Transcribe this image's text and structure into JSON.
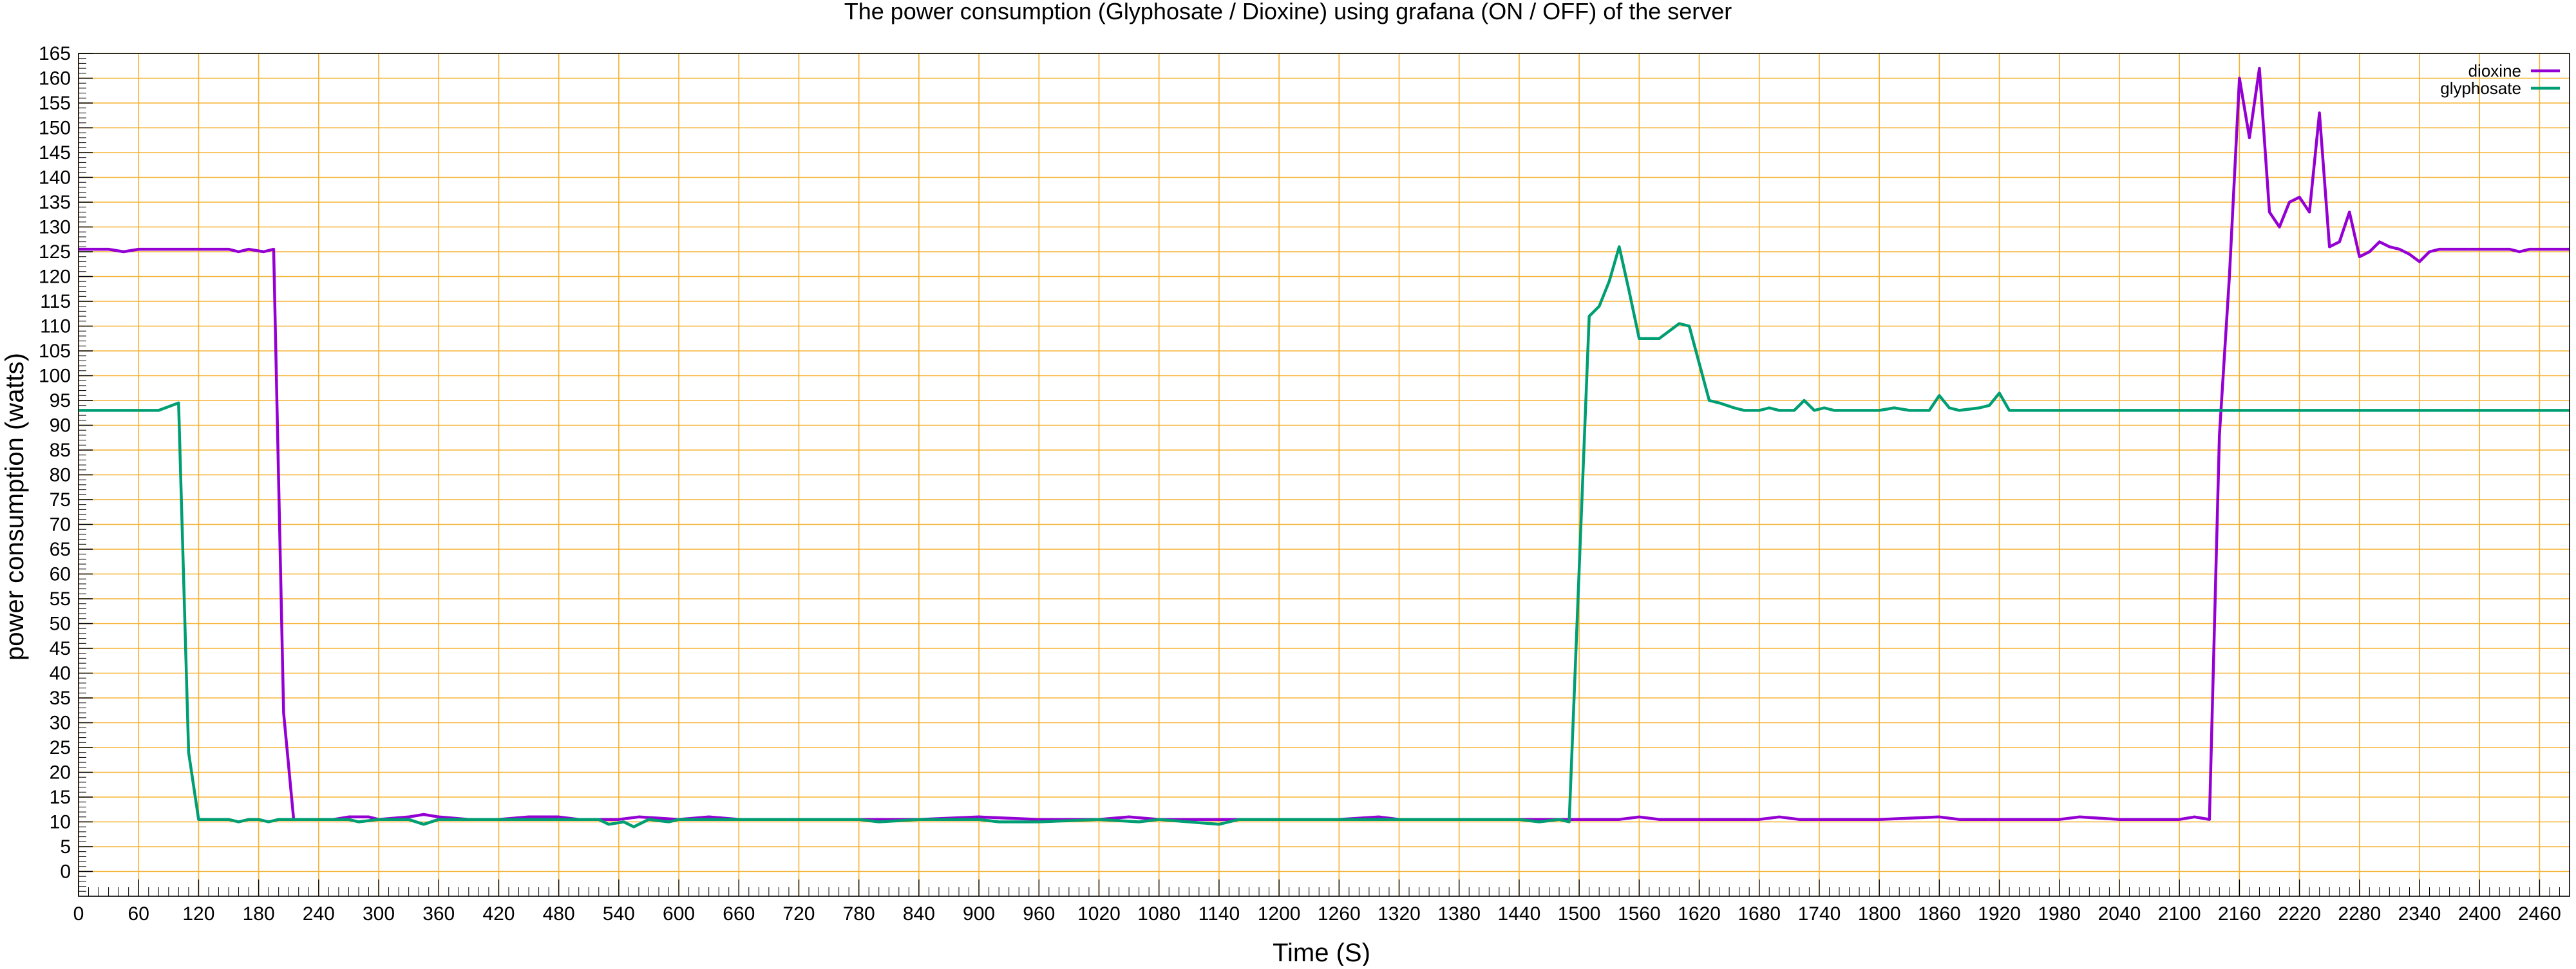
{
  "chart_data": {
    "type": "line",
    "title": "The power consumption (Glyphosate / Dioxine) using grafana (ON / OFF) of the server",
    "xlabel": "Time (S)",
    "ylabel": "power consumption (watts)",
    "xlim": [
      0,
      2490
    ],
    "ylim": [
      -5,
      165
    ],
    "x_ticks": [
      0,
      60,
      120,
      180,
      240,
      300,
      360,
      420,
      480,
      540,
      600,
      660,
      720,
      780,
      840,
      900,
      960,
      1020,
      1080,
      1140,
      1200,
      1260,
      1320,
      1380,
      1440,
      1500,
      1560,
      1620,
      1680,
      1740,
      1800,
      1860,
      1920,
      1980,
      2040,
      2100,
      2160,
      2220,
      2280,
      2340,
      2400,
      2460
    ],
    "y_ticks": [
      0,
      5,
      10,
      15,
      20,
      25,
      30,
      35,
      40,
      45,
      50,
      55,
      60,
      65,
      70,
      75,
      80,
      85,
      90,
      95,
      100,
      105,
      110,
      115,
      120,
      125,
      130,
      135,
      140,
      145,
      150,
      155,
      160,
      165
    ],
    "grid": true,
    "grid_color": "#f5b335",
    "legend_position": "top-right",
    "series": [
      {
        "name": "dioxine",
        "color": "#9400d3",
        "points": [
          [
            0,
            125.5
          ],
          [
            30,
            125.5
          ],
          [
            45,
            125
          ],
          [
            60,
            125.5
          ],
          [
            90,
            125.5
          ],
          [
            120,
            125.5
          ],
          [
            150,
            125.5
          ],
          [
            160,
            125
          ],
          [
            170,
            125.5
          ],
          [
            185,
            125
          ],
          [
            195,
            125.5
          ],
          [
            205,
            32
          ],
          [
            215,
            10.5
          ],
          [
            240,
            10.5
          ],
          [
            255,
            10.5
          ],
          [
            270,
            11
          ],
          [
            290,
            11
          ],
          [
            300,
            10.5
          ],
          [
            330,
            11
          ],
          [
            345,
            11.5
          ],
          [
            360,
            11
          ],
          [
            390,
            10.5
          ],
          [
            420,
            10.5
          ],
          [
            450,
            11
          ],
          [
            480,
            11
          ],
          [
            500,
            10.5
          ],
          [
            540,
            10.5
          ],
          [
            560,
            11
          ],
          [
            600,
            10.5
          ],
          [
            630,
            11
          ],
          [
            660,
            10.5
          ],
          [
            720,
            10.5
          ],
          [
            780,
            10.5
          ],
          [
            840,
            10.5
          ],
          [
            900,
            11
          ],
          [
            960,
            10.5
          ],
          [
            1020,
            10.5
          ],
          [
            1050,
            11
          ],
          [
            1080,
            10.5
          ],
          [
            1140,
            10.5
          ],
          [
            1200,
            10.5
          ],
          [
            1260,
            10.5
          ],
          [
            1300,
            11
          ],
          [
            1320,
            10.5
          ],
          [
            1380,
            10.5
          ],
          [
            1440,
            10.5
          ],
          [
            1480,
            10.5
          ],
          [
            1500,
            10.5
          ],
          [
            1540,
            10.5
          ],
          [
            1560,
            11
          ],
          [
            1580,
            10.5
          ],
          [
            1620,
            10.5
          ],
          [
            1680,
            10.5
          ],
          [
            1700,
            11
          ],
          [
            1720,
            10.5
          ],
          [
            1740,
            10.5
          ],
          [
            1800,
            10.5
          ],
          [
            1860,
            11
          ],
          [
            1880,
            10.5
          ],
          [
            1920,
            10.5
          ],
          [
            1980,
            10.5
          ],
          [
            2000,
            11
          ],
          [
            2040,
            10.5
          ],
          [
            2100,
            10.5
          ],
          [
            2115,
            11
          ],
          [
            2130,
            10.5
          ],
          [
            2140,
            88
          ],
          [
            2150,
            120
          ],
          [
            2160,
            160
          ],
          [
            2170,
            148
          ],
          [
            2180,
            162
          ],
          [
            2190,
            133
          ],
          [
            2200,
            130
          ],
          [
            2210,
            135
          ],
          [
            2220,
            136
          ],
          [
            2230,
            133
          ],
          [
            2240,
            153
          ],
          [
            2250,
            126
          ],
          [
            2260,
            127
          ],
          [
            2270,
            133
          ],
          [
            2280,
            124
          ],
          [
            2290,
            125
          ],
          [
            2300,
            127
          ],
          [
            2310,
            126
          ],
          [
            2320,
            125.5
          ],
          [
            2330,
            124.5
          ],
          [
            2340,
            123
          ],
          [
            2350,
            125
          ],
          [
            2360,
            125.5
          ],
          [
            2400,
            125.5
          ],
          [
            2430,
            125.5
          ],
          [
            2440,
            125
          ],
          [
            2450,
            125.5
          ],
          [
            2490,
            125.5
          ]
        ]
      },
      {
        "name": "glyphosate",
        "color": "#009e73",
        "points": [
          [
            0,
            93
          ],
          [
            30,
            93
          ],
          [
            60,
            93
          ],
          [
            80,
            93
          ],
          [
            100,
            94.5
          ],
          [
            110,
            24
          ],
          [
            120,
            10.5
          ],
          [
            150,
            10.5
          ],
          [
            160,
            10
          ],
          [
            170,
            10.5
          ],
          [
            180,
            10.5
          ],
          [
            190,
            10
          ],
          [
            200,
            10.5
          ],
          [
            240,
            10.5
          ],
          [
            270,
            10.5
          ],
          [
            280,
            10
          ],
          [
            300,
            10.5
          ],
          [
            330,
            10.5
          ],
          [
            345,
            9.5
          ],
          [
            360,
            10.5
          ],
          [
            420,
            10.5
          ],
          [
            480,
            10.5
          ],
          [
            520,
            10.5
          ],
          [
            530,
            9.5
          ],
          [
            545,
            10
          ],
          [
            555,
            9
          ],
          [
            570,
            10.5
          ],
          [
            590,
            10
          ],
          [
            600,
            10.5
          ],
          [
            660,
            10.5
          ],
          [
            720,
            10.5
          ],
          [
            780,
            10.5
          ],
          [
            800,
            10
          ],
          [
            840,
            10.5
          ],
          [
            900,
            10.5
          ],
          [
            920,
            10
          ],
          [
            960,
            10
          ],
          [
            1020,
            10.5
          ],
          [
            1060,
            10
          ],
          [
            1080,
            10.5
          ],
          [
            1140,
            9.5
          ],
          [
            1160,
            10.5
          ],
          [
            1200,
            10.5
          ],
          [
            1260,
            10.5
          ],
          [
            1320,
            10.5
          ],
          [
            1380,
            10.5
          ],
          [
            1440,
            10.5
          ],
          [
            1460,
            10
          ],
          [
            1480,
            10.5
          ],
          [
            1490,
            10
          ],
          [
            1510,
            112
          ],
          [
            1520,
            114
          ],
          [
            1530,
            119
          ],
          [
            1540,
            126
          ],
          [
            1550,
            117
          ],
          [
            1560,
            107.5
          ],
          [
            1580,
            107.5
          ],
          [
            1600,
            110.5
          ],
          [
            1610,
            110
          ],
          [
            1630,
            95
          ],
          [
            1640,
            94.5
          ],
          [
            1655,
            93.5
          ],
          [
            1665,
            93
          ],
          [
            1680,
            93
          ],
          [
            1690,
            93.5
          ],
          [
            1700,
            93
          ],
          [
            1715,
            93
          ],
          [
            1725,
            95
          ],
          [
            1735,
            93
          ],
          [
            1745,
            93.5
          ],
          [
            1755,
            93
          ],
          [
            1800,
            93
          ],
          [
            1815,
            93.5
          ],
          [
            1830,
            93
          ],
          [
            1850,
            93
          ],
          [
            1860,
            96
          ],
          [
            1870,
            93.5
          ],
          [
            1880,
            93
          ],
          [
            1900,
            93.5
          ],
          [
            1910,
            94
          ],
          [
            1920,
            96.5
          ],
          [
            1930,
            93
          ],
          [
            1980,
            93
          ],
          [
            2040,
            93
          ],
          [
            2100,
            93
          ],
          [
            2160,
            93
          ],
          [
            2220,
            93
          ],
          [
            2280,
            93
          ],
          [
            2340,
            93
          ],
          [
            2400,
            93
          ],
          [
            2460,
            93
          ],
          [
            2490,
            93
          ]
        ]
      }
    ]
  }
}
